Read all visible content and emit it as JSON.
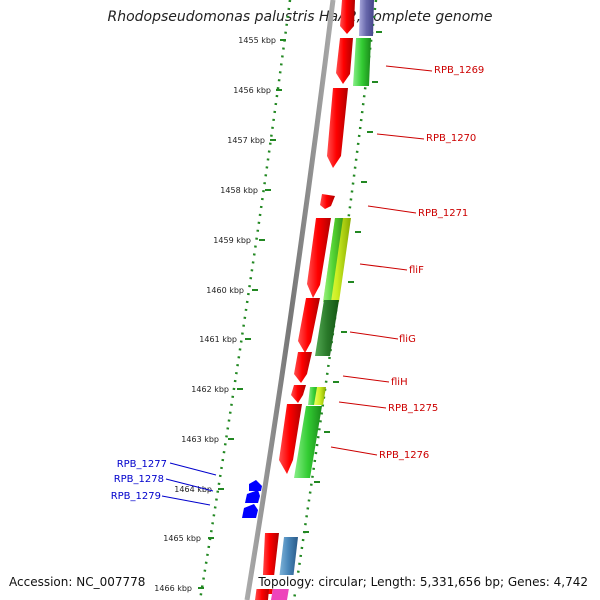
{
  "title": "Rhodopseudomonas palustris HaA2, complete genome",
  "accession": "Accession: NC_007778",
  "topology": "Topology: circular; Length: 5,331,656 bp; Genes: 4,742",
  "colors": {
    "axis": "#808080",
    "ruler": "#228822",
    "label_red": "#cc0000",
    "label_blue": "#0000cc"
  },
  "ticks": [
    "1455 kbp",
    "1456 kbp",
    "1457 kbp",
    "1458 kbp",
    "1459 kbp",
    "1460 kbp",
    "1461 kbp",
    "1462 kbp",
    "1463 kbp",
    "1464 kbp",
    "1465 kbp",
    "1466 kbp"
  ],
  "genes_right": [
    "RPB_1269",
    "RPB_1270",
    "RPB_1271",
    "fliF",
    "fliG",
    "fliH",
    "RPB_1275",
    "RPB_1276"
  ],
  "genes_left": [
    "RPB_1277",
    "RPB_1278",
    "RPB_1279"
  ]
}
